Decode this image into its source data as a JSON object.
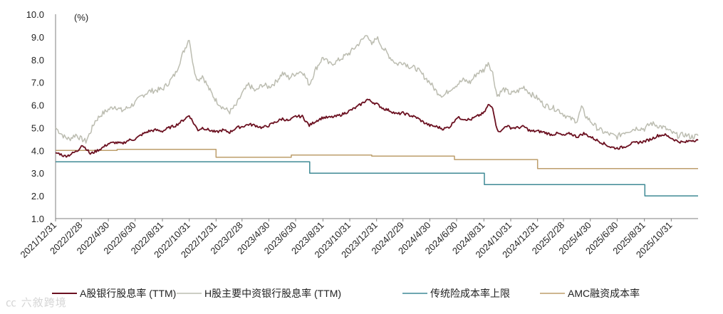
{
  "chart_data": {
    "type": "line",
    "unit_label": "(%)",
    "ylim": [
      1.0,
      10.0
    ],
    "y_ticks": [
      "1.0",
      "2.0",
      "3.0",
      "4.0",
      "5.0",
      "6.0",
      "7.0",
      "8.0",
      "9.0",
      "10.0"
    ],
    "x_range": [
      "2021-12-31",
      "2025-12-31"
    ],
    "x_ticks": [
      "2021/12/31",
      "2022/2/28",
      "2022/4/30",
      "2022/6/30",
      "2022/8/31",
      "2022/10/31",
      "2022/12/31",
      "2023/2/28",
      "2023/4/30",
      "2023/6/30",
      "2023/8/31",
      "2023/10/31",
      "2023/12/31",
      "2024/2/29",
      "2024/4/30",
      "2024/6/30",
      "2024/8/31",
      "2024/10/31",
      "2024/12/31",
      "2025/2/28",
      "2025/4/30",
      "2025/6/30",
      "2025/8/31",
      "2025/10/31"
    ],
    "grid": false,
    "legend_position": "bottom",
    "series": [
      {
        "name": "A股银行股息率 (TTM)",
        "color": "#6b1020",
        "style": "line",
        "points": [
          [
            "2021-12-31",
            3.9
          ],
          [
            "2022-01-10",
            3.85
          ],
          [
            "2022-01-20",
            3.75
          ],
          [
            "2022-01-31",
            3.8
          ],
          [
            "2022-02-10",
            3.9
          ],
          [
            "2022-02-20",
            4.0
          ],
          [
            "2022-02-28",
            4.25
          ],
          [
            "2022-03-10",
            4.1
          ],
          [
            "2022-03-20",
            3.85
          ],
          [
            "2022-03-31",
            3.95
          ],
          [
            "2022-04-15",
            4.1
          ],
          [
            "2022-04-30",
            4.3
          ],
          [
            "2022-05-15",
            4.35
          ],
          [
            "2022-05-31",
            4.3
          ],
          [
            "2022-06-15",
            4.45
          ],
          [
            "2022-06-30",
            4.5
          ],
          [
            "2022-07-15",
            4.7
          ],
          [
            "2022-07-31",
            4.85
          ],
          [
            "2022-08-15",
            4.9
          ],
          [
            "2022-08-31",
            4.85
          ],
          [
            "2022-09-15",
            5.0
          ],
          [
            "2022-09-30",
            5.1
          ],
          [
            "2022-10-15",
            5.3
          ],
          [
            "2022-10-31",
            5.55
          ],
          [
            "2022-11-10",
            5.2
          ],
          [
            "2022-11-20",
            4.9
          ],
          [
            "2022-11-30",
            5.0
          ],
          [
            "2022-12-15",
            4.9
          ],
          [
            "2022-12-31",
            4.8
          ],
          [
            "2023-01-15",
            4.9
          ],
          [
            "2023-01-31",
            4.8
          ],
          [
            "2023-02-15",
            5.0
          ],
          [
            "2023-02-28",
            5.05
          ],
          [
            "2023-03-15",
            5.15
          ],
          [
            "2023-03-31",
            5.1
          ],
          [
            "2023-04-15",
            5.0
          ],
          [
            "2023-04-30",
            5.1
          ],
          [
            "2023-05-15",
            5.25
          ],
          [
            "2023-05-31",
            5.4
          ],
          [
            "2023-06-15",
            5.3
          ],
          [
            "2023-06-30",
            5.5
          ],
          [
            "2023-07-15",
            5.5
          ],
          [
            "2023-07-31",
            5.1
          ],
          [
            "2023-08-15",
            5.3
          ],
          [
            "2023-08-31",
            5.45
          ],
          [
            "2023-09-15",
            5.45
          ],
          [
            "2023-09-30",
            5.5
          ],
          [
            "2023-10-15",
            5.6
          ],
          [
            "2023-10-31",
            5.75
          ],
          [
            "2023-11-15",
            5.9
          ],
          [
            "2023-11-30",
            6.1
          ],
          [
            "2023-12-10",
            6.25
          ],
          [
            "2023-12-20",
            6.15
          ],
          [
            "2023-12-31",
            6.05
          ],
          [
            "2024-01-15",
            5.85
          ],
          [
            "2024-01-31",
            5.75
          ],
          [
            "2024-02-15",
            5.6
          ],
          [
            "2024-02-29",
            5.65
          ],
          [
            "2024-03-15",
            5.55
          ],
          [
            "2024-03-31",
            5.45
          ],
          [
            "2024-04-15",
            5.25
          ],
          [
            "2024-04-30",
            5.1
          ],
          [
            "2024-05-15",
            5.05
          ],
          [
            "2024-05-31",
            4.95
          ],
          [
            "2024-06-15",
            5.05
          ],
          [
            "2024-06-30",
            5.45
          ],
          [
            "2024-07-15",
            5.4
          ],
          [
            "2024-07-31",
            5.35
          ],
          [
            "2024-08-15",
            5.5
          ],
          [
            "2024-08-31",
            5.65
          ],
          [
            "2024-09-10",
            6.0
          ],
          [
            "2024-09-20",
            5.9
          ],
          [
            "2024-09-30",
            4.9
          ],
          [
            "2024-10-10",
            4.85
          ],
          [
            "2024-10-20",
            5.1
          ],
          [
            "2024-10-31",
            5.0
          ],
          [
            "2024-11-15",
            5.0
          ],
          [
            "2024-11-30",
            5.05
          ],
          [
            "2024-12-15",
            4.85
          ],
          [
            "2024-12-31",
            4.85
          ],
          [
            "2025-01-15",
            4.8
          ],
          [
            "2025-01-31",
            4.7
          ],
          [
            "2025-02-15",
            4.75
          ],
          [
            "2025-02-28",
            4.65
          ],
          [
            "2025-03-15",
            4.75
          ],
          [
            "2025-03-31",
            4.6
          ],
          [
            "2025-04-15",
            4.75
          ],
          [
            "2025-04-30",
            4.6
          ],
          [
            "2025-05-15",
            4.45
          ],
          [
            "2025-05-31",
            4.3
          ],
          [
            "2025-06-15",
            4.15
          ],
          [
            "2025-06-30",
            4.1
          ],
          [
            "2025-07-15",
            4.15
          ],
          [
            "2025-07-31",
            4.3
          ],
          [
            "2025-08-15",
            4.35
          ],
          [
            "2025-08-31",
            4.4
          ],
          [
            "2025-09-15",
            4.5
          ],
          [
            "2025-09-30",
            4.65
          ],
          [
            "2025-10-15",
            4.7
          ],
          [
            "2025-10-31",
            4.55
          ],
          [
            "2025-11-15",
            4.4
          ],
          [
            "2025-11-30",
            4.35
          ],
          [
            "2025-12-15",
            4.45
          ],
          [
            "2025-12-31",
            4.45
          ]
        ]
      },
      {
        "name": "H股主要中资银行股息率 (TTM)",
        "color": "#bcbdb1",
        "style": "line",
        "points": [
          [
            "2021-12-31",
            5.0
          ],
          [
            "2022-01-10",
            4.8
          ],
          [
            "2022-01-20",
            4.6
          ],
          [
            "2022-01-31",
            4.5
          ],
          [
            "2022-02-15",
            4.7
          ],
          [
            "2022-02-28",
            4.5
          ],
          [
            "2022-03-10",
            4.4
          ],
          [
            "2022-03-20",
            4.8
          ],
          [
            "2022-03-31",
            5.3
          ],
          [
            "2022-04-15",
            5.6
          ],
          [
            "2022-04-30",
            5.8
          ],
          [
            "2022-05-15",
            5.95
          ],
          [
            "2022-05-31",
            5.75
          ],
          [
            "2022-06-15",
            5.9
          ],
          [
            "2022-06-30",
            6.1
          ],
          [
            "2022-07-15",
            6.4
          ],
          [
            "2022-07-31",
            6.6
          ],
          [
            "2022-08-15",
            6.65
          ],
          [
            "2022-08-31",
            6.7
          ],
          [
            "2022-09-15",
            7.0
          ],
          [
            "2022-09-30",
            7.4
          ],
          [
            "2022-10-15",
            8.2
          ],
          [
            "2022-10-31",
            8.95
          ],
          [
            "2022-11-10",
            7.6
          ],
          [
            "2022-11-20",
            7.1
          ],
          [
            "2022-11-30",
            7.3
          ],
          [
            "2022-12-15",
            6.7
          ],
          [
            "2022-12-31",
            6.2
          ],
          [
            "2023-01-15",
            5.9
          ],
          [
            "2023-01-31",
            5.7
          ],
          [
            "2023-02-15",
            6.0
          ],
          [
            "2023-02-28",
            6.5
          ],
          [
            "2023-03-15",
            6.9
          ],
          [
            "2023-03-31",
            6.6
          ],
          [
            "2023-04-15",
            6.9
          ],
          [
            "2023-04-30",
            6.8
          ],
          [
            "2023-05-15",
            7.0
          ],
          [
            "2023-05-31",
            7.4
          ],
          [
            "2023-06-15",
            7.2
          ],
          [
            "2023-06-30",
            7.4
          ],
          [
            "2023-07-15",
            7.5
          ],
          [
            "2023-07-31",
            6.9
          ],
          [
            "2023-08-15",
            7.6
          ],
          [
            "2023-08-31",
            8.1
          ],
          [
            "2023-09-15",
            7.8
          ],
          [
            "2023-09-30",
            7.9
          ],
          [
            "2023-10-15",
            8.1
          ],
          [
            "2023-10-31",
            8.3
          ],
          [
            "2023-11-15",
            8.6
          ],
          [
            "2023-11-30",
            8.9
          ],
          [
            "2023-12-10",
            9.15
          ],
          [
            "2023-12-20",
            8.6
          ],
          [
            "2023-12-31",
            9.0
          ],
          [
            "2024-01-15",
            8.5
          ],
          [
            "2024-01-31",
            8.1
          ],
          [
            "2024-02-15",
            7.8
          ],
          [
            "2024-02-29",
            7.9
          ],
          [
            "2024-03-15",
            7.7
          ],
          [
            "2024-03-31",
            7.6
          ],
          [
            "2024-04-15",
            7.3
          ],
          [
            "2024-04-30",
            7.0
          ],
          [
            "2024-05-15",
            6.6
          ],
          [
            "2024-05-31",
            6.4
          ],
          [
            "2024-06-15",
            6.7
          ],
          [
            "2024-06-30",
            6.9
          ],
          [
            "2024-07-15",
            7.1
          ],
          [
            "2024-07-31",
            7.0
          ],
          [
            "2024-08-15",
            7.4
          ],
          [
            "2024-08-31",
            7.55
          ],
          [
            "2024-09-10",
            7.9
          ],
          [
            "2024-09-20",
            7.4
          ],
          [
            "2024-09-30",
            6.4
          ],
          [
            "2024-10-15",
            6.7
          ],
          [
            "2024-10-31",
            6.5
          ],
          [
            "2024-11-15",
            6.6
          ],
          [
            "2024-11-30",
            6.8
          ],
          [
            "2024-12-15",
            6.5
          ],
          [
            "2024-12-31",
            6.3
          ],
          [
            "2025-01-15",
            6.0
          ],
          [
            "2025-01-31",
            5.9
          ],
          [
            "2025-02-15",
            5.8
          ],
          [
            "2025-02-28",
            5.6
          ],
          [
            "2025-03-15",
            5.4
          ],
          [
            "2025-03-31",
            5.3
          ],
          [
            "2025-04-10",
            5.9
          ],
          [
            "2025-04-20",
            5.5
          ],
          [
            "2025-04-30",
            5.3
          ],
          [
            "2025-05-15",
            5.0
          ],
          [
            "2025-05-31",
            4.8
          ],
          [
            "2025-06-15",
            4.7
          ],
          [
            "2025-06-30",
            4.6
          ],
          [
            "2025-07-15",
            4.8
          ],
          [
            "2025-07-31",
            4.9
          ],
          [
            "2025-08-15",
            5.0
          ],
          [
            "2025-08-31",
            4.95
          ],
          [
            "2025-09-15",
            5.2
          ],
          [
            "2025-09-30",
            5.1
          ],
          [
            "2025-10-15",
            5.0
          ],
          [
            "2025-10-31",
            4.8
          ],
          [
            "2025-11-15",
            4.65
          ],
          [
            "2025-11-30",
            4.7
          ],
          [
            "2025-12-15",
            4.6
          ],
          [
            "2025-12-31",
            4.65
          ]
        ]
      },
      {
        "name": "传统险成本率上限",
        "color": "#3f8a95",
        "style": "step",
        "points": [
          [
            "2021-12-31",
            3.5
          ],
          [
            "2023-08-01",
            3.0
          ],
          [
            "2024-09-01",
            2.5
          ],
          [
            "2025-09-01",
            2.0
          ],
          [
            "2025-12-31",
            2.0
          ]
        ]
      },
      {
        "name": "AMC融资成本率",
        "color": "#bd9e6b",
        "style": "step",
        "points": [
          [
            "2021-12-31",
            4.0
          ],
          [
            "2022-05-20",
            4.05
          ],
          [
            "2022-12-31",
            3.7
          ],
          [
            "2023-06-20",
            3.8
          ],
          [
            "2023-12-20",
            3.75
          ],
          [
            "2024-06-25",
            3.6
          ],
          [
            "2024-12-31",
            3.2
          ],
          [
            "2025-12-31",
            3.2
          ]
        ]
      }
    ]
  },
  "watermark": "㏄ 六敘跨境"
}
